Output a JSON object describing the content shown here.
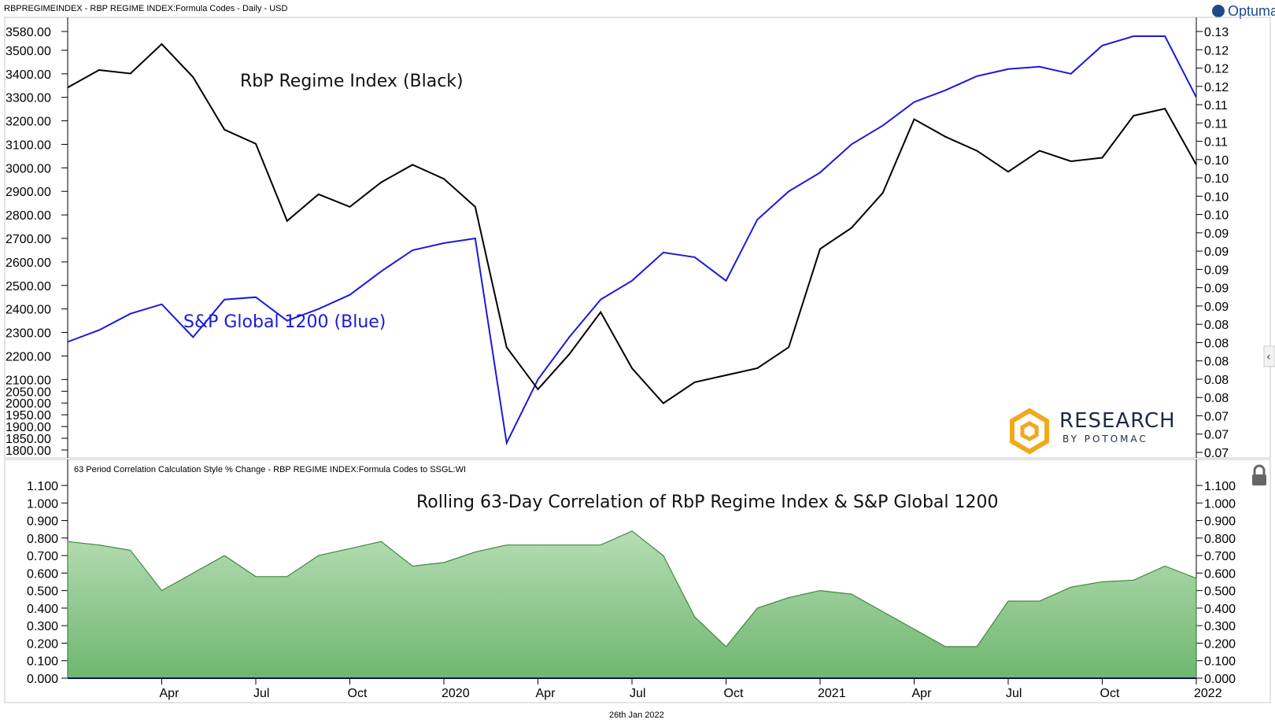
{
  "header": {
    "title": "RBPREGIMEINDEX - RBP REGIME INDEX:Formula Codes - Daily - USD"
  },
  "brand": {
    "optuma": "Optuma"
  },
  "logo": {
    "research": "RESEARCH",
    "by": "BY POTOMAC",
    "color": "#f2a81d"
  },
  "footer": {
    "date": "26th Jan 2022"
  },
  "colors": {
    "black_series": "#000000",
    "blue_series": "#1a1adb",
    "area_fill_top": "#a9d8a8",
    "area_fill_bottom": "#6cb46e",
    "area_line": "#3d8a3e"
  },
  "chart_data": [
    {
      "type": "line",
      "annotations": [
        "RbP Regime Index (Black)",
        "S&P Global 1200 (Blue)"
      ],
      "left_axis_ticks": [
        "3580.00",
        "3500.00",
        "3400.00",
        "3300.00",
        "3200.00",
        "3100.00",
        "3000.00",
        "2900.00",
        "2800.00",
        "2700.00",
        "2600.00",
        "2500.00",
        "2400.00",
        "2300.00",
        "2200.00",
        "2100.00",
        "2050.00",
        "2000.00",
        "1950.00",
        "1900.00",
        "1850.00",
        "1800.00"
      ],
      "right_axis_ticks": [
        "0.13",
        "0.12",
        "0.12",
        "0.12",
        "0.11",
        "0.11",
        "0.11",
        "0.10",
        "0.10",
        "0.10",
        "0.10",
        "0.09",
        "0.09",
        "0.09",
        "0.09",
        "0.09",
        "0.08",
        "0.08",
        "0.08",
        "0.08",
        "0.08",
        "0.07",
        "0.07",
        "0.07"
      ],
      "x_tick_labels": [
        "Apr",
        "Jul",
        "Oct",
        "2020",
        "Apr",
        "Jul",
        "Oct",
        "2021",
        "Apr",
        "Jul",
        "Oct",
        "2022"
      ],
      "y_range_left": [
        1790,
        3580
      ],
      "y_range_right": [
        0.07,
        0.13
      ],
      "series": [
        {
          "name": "RbP Regime Index (Black)",
          "axis": "right",
          "x": [
            "2019-01",
            "2019-02",
            "2019-03",
            "2019-04",
            "2019-05",
            "2019-06",
            "2019-07",
            "2019-08",
            "2019-09",
            "2019-10",
            "2019-11",
            "2019-12",
            "2020-01",
            "2020-02",
            "2020-03",
            "2020-04",
            "2020-05",
            "2020-06",
            "2020-07",
            "2020-08",
            "2020-09",
            "2020-10",
            "2020-11",
            "2020-12",
            "2021-01",
            "2021-02",
            "2021-03",
            "2021-04",
            "2021-05",
            "2021-06",
            "2021-07",
            "2021-08",
            "2021-09",
            "2021-10",
            "2021-11",
            "2021-12",
            "2022-01"
          ],
          "values": [
            0.122,
            0.1245,
            0.124,
            0.1282,
            0.1235,
            0.116,
            0.114,
            0.103,
            0.1068,
            0.105,
            0.1085,
            0.111,
            0.109,
            0.105,
            0.085,
            0.079,
            0.084,
            0.09,
            0.082,
            0.077,
            0.08,
            0.081,
            0.082,
            0.085,
            0.099,
            0.102,
            0.107,
            0.1175,
            0.115,
            0.113,
            0.11,
            0.113,
            0.1115,
            0.112,
            0.118,
            0.119,
            0.111
          ]
        },
        {
          "name": "S&P Global 1200 (Blue)",
          "axis": "left",
          "x": [
            "2019-01",
            "2019-02",
            "2019-03",
            "2019-04",
            "2019-05",
            "2019-06",
            "2019-07",
            "2019-08",
            "2019-09",
            "2019-10",
            "2019-11",
            "2019-12",
            "2020-01",
            "2020-02",
            "2020-03",
            "2020-04",
            "2020-05",
            "2020-06",
            "2020-07",
            "2020-08",
            "2020-09",
            "2020-10",
            "2020-11",
            "2020-12",
            "2021-01",
            "2021-02",
            "2021-03",
            "2021-04",
            "2021-05",
            "2021-06",
            "2021-07",
            "2021-08",
            "2021-09",
            "2021-10",
            "2021-11",
            "2021-12",
            "2022-01"
          ],
          "values": [
            2260,
            2310,
            2380,
            2420,
            2280,
            2440,
            2450,
            2350,
            2400,
            2460,
            2560,
            2650,
            2680,
            2700,
            1830,
            2100,
            2280,
            2440,
            2520,
            2640,
            2620,
            2520,
            2780,
            2900,
            2980,
            3100,
            3180,
            3280,
            3330,
            3390,
            3420,
            3430,
            3400,
            3520,
            3560,
            3560,
            3300
          ]
        }
      ]
    },
    {
      "type": "area",
      "title": "Rolling 63-Day Correlation of RbP Regime Index & S&P Global 1200",
      "subtitle": "63 Period Correlation Calculation Style % Change - RBP REGIME INDEX:Formula Codes to SSGL:WI",
      "y_ticks": [
        "0.000",
        "0.100",
        "0.200",
        "0.300",
        "0.400",
        "0.500",
        "0.600",
        "0.700",
        "0.800",
        "0.900",
        "1.000",
        "1.100"
      ],
      "ylim": [
        0,
        1.1
      ],
      "x": [
        "2019-01",
        "2019-02",
        "2019-03",
        "2019-04",
        "2019-05",
        "2019-06",
        "2019-07",
        "2019-08",
        "2019-09",
        "2019-10",
        "2019-11",
        "2019-12",
        "2020-01",
        "2020-02",
        "2020-03",
        "2020-04",
        "2020-05",
        "2020-06",
        "2020-07",
        "2020-08",
        "2020-09",
        "2020-10",
        "2020-11",
        "2020-12",
        "2021-01",
        "2021-02",
        "2021-03",
        "2021-04",
        "2021-05",
        "2021-06",
        "2021-07",
        "2021-08",
        "2021-09",
        "2021-10",
        "2021-11",
        "2021-12",
        "2022-01"
      ],
      "values": [
        0.78,
        0.76,
        0.73,
        0.5,
        0.6,
        0.7,
        0.58,
        0.58,
        0.7,
        0.74,
        0.78,
        0.64,
        0.66,
        0.72,
        0.76,
        0.76,
        0.76,
        0.76,
        0.84,
        0.7,
        0.35,
        0.18,
        0.4,
        0.46,
        0.5,
        0.48,
        0.38,
        0.28,
        0.18,
        0.18,
        0.44,
        0.44,
        0.52,
        0.55,
        0.56,
        0.64,
        0.57
      ]
    }
  ]
}
